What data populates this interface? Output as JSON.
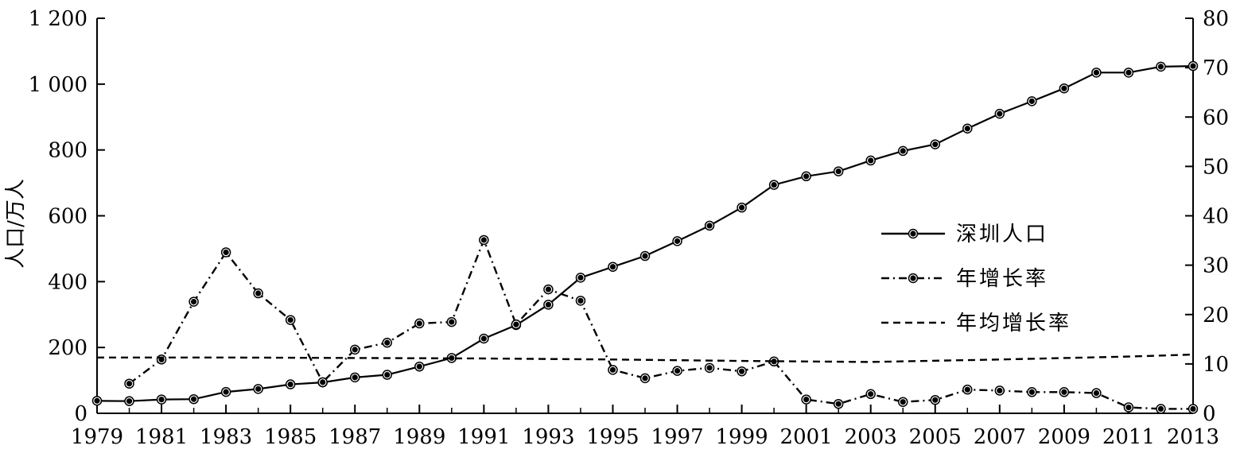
{
  "chart_data": {
    "type": "line",
    "title": "",
    "xlabel": "",
    "ylabel": "人口/万人",
    "y2label": "",
    "x": [
      1979,
      1980,
      1981,
      1982,
      1983,
      1984,
      1985,
      1986,
      1987,
      1988,
      1989,
      1990,
      1991,
      1992,
      1993,
      1994,
      1995,
      1996,
      1997,
      1998,
      1999,
      2000,
      2001,
      2002,
      2003,
      2004,
      2005,
      2006,
      2007,
      2008,
      2009,
      2010,
      2011,
      2012,
      2013
    ],
    "xticks": [
      "1979",
      "1981",
      "1983",
      "1985",
      "1987",
      "1989",
      "1991",
      "1993",
      "1995",
      "1997",
      "1999",
      "2001",
      "2003",
      "2005",
      "2007",
      "2009",
      "2011",
      "2013"
    ],
    "ylim": [
      0,
      1200
    ],
    "yticks": [
      "0",
      "200",
      "400",
      "600",
      "800",
      "1 000",
      "1 200"
    ],
    "y2lim": [
      0,
      80
    ],
    "y2ticks": [
      "0",
      "10",
      "20",
      "30",
      "40",
      "50",
      "60",
      "70",
      "80"
    ],
    "grid": false,
    "legend_position": "right-middle",
    "series": [
      {
        "name": "深圳人口",
        "axis": "left",
        "style": "solid",
        "markers": true,
        "x": [
          1979,
          1980,
          1981,
          1982,
          1983,
          1984,
          1985,
          1986,
          1987,
          1988,
          1989,
          1990,
          1991,
          1992,
          1993,
          1994,
          1995,
          1996,
          1997,
          1998,
          1999,
          2000,
          2001,
          2002,
          2003,
          2004,
          2005,
          2006,
          2007,
          2008,
          2009,
          2010,
          2011,
          2012,
          2013
        ],
        "values": [
          38,
          37,
          42,
          43,
          65,
          74,
          88,
          94,
          109,
          117,
          142,
          168,
          227,
          268,
          330,
          412,
          445,
          478,
          523,
          570,
          625,
          694,
          720,
          735,
          768,
          797,
          817,
          865,
          910,
          948,
          987,
          1035,
          1035,
          1053,
          1055
        ]
      },
      {
        "name": "年增长率",
        "axis": "right",
        "style": "dash-dot",
        "markers": true,
        "x": [
          1980,
          1981,
          1982,
          1983,
          1984,
          1985,
          1986,
          1987,
          1988,
          1989,
          1990,
          1991,
          1992,
          1993,
          1994,
          1995,
          1996,
          1997,
          1998,
          1999,
          2000,
          2001,
          2002,
          2003,
          2004,
          2005,
          2006,
          2007,
          2008,
          2009,
          2010,
          2011,
          2012,
          2013
        ],
        "values": [
          6.0,
          10.9,
          22.6,
          32.6,
          24.3,
          18.9,
          6.3,
          12.9,
          14.3,
          18.2,
          18.5,
          35.1,
          18.0,
          25.1,
          22.8,
          8.8,
          7.1,
          8.6,
          9.2,
          8.5,
          10.5,
          2.8,
          1.9,
          3.9,
          2.3,
          2.7,
          4.8,
          4.6,
          4.3,
          4.3,
          4.1,
          1.2,
          0.9,
          0.9
        ]
      },
      {
        "name": "年均增长率",
        "axis": "right",
        "style": "dashed",
        "markers": false,
        "x": [
          1979,
          1983,
          1987,
          1991,
          1995,
          1999,
          2003,
          2007,
          2011,
          2013
        ],
        "values": [
          11.3,
          11.3,
          11.2,
          11.1,
          10.9,
          10.6,
          10.4,
          10.9,
          11.5,
          11.9
        ]
      }
    ]
  }
}
